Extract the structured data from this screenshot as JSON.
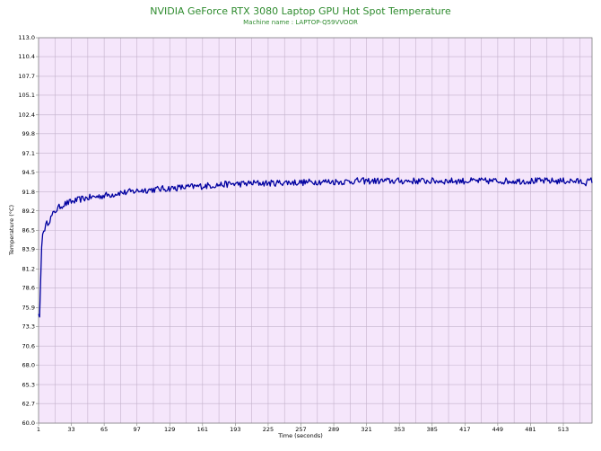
{
  "chart_data": {
    "type": "line",
    "title": "NVIDIA GeForce RTX 3080 Laptop GPU Hot Spot Temperature",
    "subtitle": "Machine name : LAPTOP-Q59VVOOR",
    "xlabel": "Time (seconds)",
    "ylabel": "Temperature (°C)",
    "xlim": [
      1,
      541
    ],
    "ylim": [
      60.0,
      113.0
    ],
    "x_ticks": [
      "1",
      "33",
      "65",
      "97",
      "129",
      "161",
      "193",
      "225",
      "257",
      "289",
      "321",
      "353",
      "385",
      "417",
      "449",
      "481",
      "513"
    ],
    "x_tick_values": [
      1,
      33,
      65,
      97,
      129,
      161,
      193,
      225,
      257,
      289,
      321,
      353,
      385,
      417,
      449,
      481,
      513
    ],
    "y_ticks": [
      "113.0",
      "110.4",
      "107.7",
      "105.1",
      "102.4",
      "99.8",
      "97.1",
      "94.5",
      "91.8",
      "89.2",
      "86.5",
      "83.9",
      "81.2",
      "78.6",
      "75.9",
      "73.3",
      "70.6",
      "68.0",
      "65.3",
      "62.7",
      "60.0"
    ],
    "y_tick_values": [
      113.0,
      110.4,
      107.7,
      105.1,
      102.4,
      99.8,
      97.1,
      94.5,
      91.8,
      89.2,
      86.5,
      83.9,
      81.2,
      78.6,
      75.9,
      73.3,
      70.6,
      68.0,
      65.3,
      62.7,
      60.0
    ],
    "grid": true,
    "series": [
      {
        "color": "#0000a0",
        "x": [
          1,
          2,
          3,
          4,
          5,
          7,
          9,
          12,
          15,
          18,
          22,
          26,
          30,
          35,
          40,
          45,
          50,
          55,
          60,
          65,
          70,
          75,
          80,
          85,
          90,
          95,
          100,
          110,
          120,
          130,
          140,
          150,
          160,
          170,
          180,
          190,
          200,
          210,
          220,
          230,
          240,
          250,
          260,
          270,
          280,
          290,
          300,
          310,
          320,
          330,
          340,
          350,
          360,
          370,
          380,
          390,
          400,
          410,
          420,
          430,
          440,
          450,
          460,
          470,
          480,
          490,
          500,
          510,
          520,
          530,
          535,
          541
        ],
        "y": [
          75.0,
          74.6,
          79.5,
          84.2,
          86.0,
          86.8,
          87.4,
          88.0,
          88.7,
          89.3,
          89.8,
          90.1,
          90.3,
          90.5,
          90.7,
          90.9,
          91.0,
          91.1,
          91.2,
          91.3,
          91.4,
          91.5,
          91.7,
          91.7,
          91.8,
          91.9,
          92.0,
          92.1,
          92.2,
          92.3,
          92.4,
          92.5,
          92.6,
          92.7,
          92.8,
          92.9,
          92.9,
          93.0,
          93.0,
          93.0,
          93.1,
          93.1,
          93.1,
          93.2,
          93.2,
          93.2,
          93.2,
          93.3,
          93.3,
          93.3,
          93.3,
          93.3,
          93.3,
          93.3,
          93.3,
          93.3,
          93.3,
          93.3,
          93.3,
          93.3,
          93.3,
          93.3,
          93.3,
          93.3,
          93.3,
          93.3,
          93.3,
          93.3,
          93.3,
          93.2,
          93.1,
          93.4
        ]
      }
    ]
  }
}
